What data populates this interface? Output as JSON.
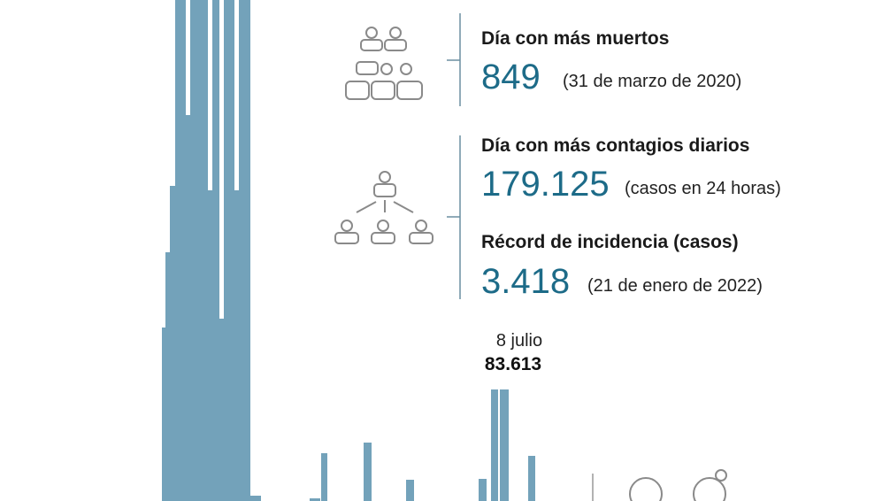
{
  "stats": [
    {
      "label": "Día con más muertos",
      "value": "849",
      "note": "(31 de marzo de 2020)"
    },
    {
      "label": "Día con más contagios diarios",
      "value": "179.125",
      "note": "(casos en 24 horas)"
    },
    {
      "label": "Récord de incidencia (casos)",
      "value": "3.418",
      "note": "(21 de enero de 2022)"
    }
  ],
  "annotation": {
    "date": "8 julio",
    "value": "83.613"
  }
}
